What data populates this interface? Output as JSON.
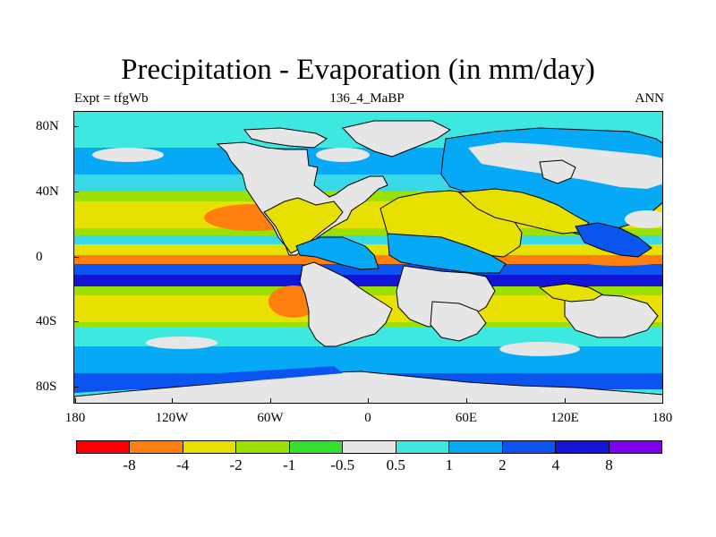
{
  "title": "Precipitation - Evaporation (in mm/day)",
  "subtitle_left": "Expt = tfgWb",
  "subtitle_center": "136_4_MaBP",
  "subtitle_right": "ANN",
  "lat_labels": [
    "80N",
    "40N",
    "0",
    "40S",
    "80S"
  ],
  "lon_labels": [
    "180",
    "120W",
    "60W",
    "0",
    "60E",
    "120E",
    "180"
  ],
  "colorbar": {
    "colors": [
      "#ff0000",
      "#ff7f0e",
      "#e8e000",
      "#9ae000",
      "#33e02e",
      "#e6e6e6",
      "#3de8e0",
      "#05a9f5",
      "#0a55f0",
      "#1414d9",
      "#8000f0"
    ],
    "labels": [
      "-8",
      "-4",
      "-2",
      "-1",
      "-0.5",
      "0.5",
      "1",
      "2",
      "4",
      "8"
    ]
  },
  "palette": {
    "cyan": "#39d9e8",
    "lightblue": "#05a9f5",
    "blue": "#0a55f0",
    "navy": "#1414d9",
    "gray": "#e6e6e6",
    "green": "#33e02e",
    "lime": "#9ae000",
    "yellow": "#e8e000",
    "orange": "#ff7f0e",
    "red": "#ff0000"
  }
}
